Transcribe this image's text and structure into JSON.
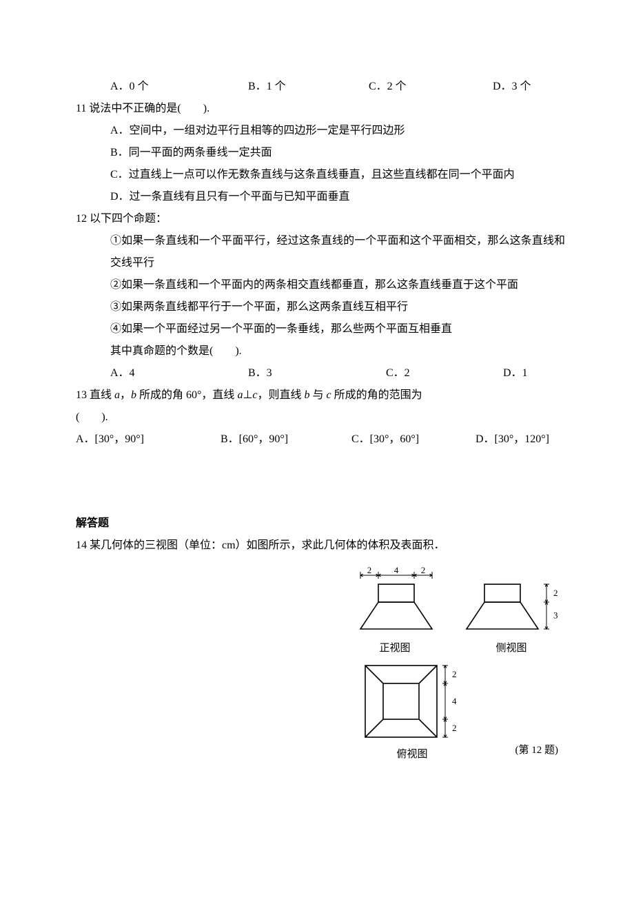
{
  "q10_options": {
    "a": "A．0 个",
    "b": "B．1 个",
    "c": "C．2 个",
    "d": "D．3 个"
  },
  "q11": {
    "stem": "11 说法中不正确的是(　　).",
    "a": "A．空间中，一组对边平行且相等的四边形一定是平行四边形",
    "b": "B．同一平面的两条垂线一定共面",
    "c": "C．过直线上一点可以作无数条直线与这条直线垂直，且这些直线都在同一个平面内",
    "d": "D．过一条直线有且只有一个平面与已知平面垂直"
  },
  "q12": {
    "stem": "12 以下四个命题：",
    "p1": "①如果一条直线和一个平面平行，经过这条直线的一个平面和这个平面相交，那么这条直线和交线平行",
    "p2": "②如果一条直线和一个平面内的两条相交直线都垂直，那么这条直线垂直于这个平面",
    "p3": "③如果两条直线都平行于一个平面，那么这两条直线互相平行",
    "p4": "④如果一个平面经过另一个平面的一条垂线，那么些两个平面互相垂直",
    "tail": "其中真命题的个数是(　　).",
    "options": {
      "a": "A．4",
      "b": "B．3",
      "c": "C．2",
      "d": "D．1"
    }
  },
  "q13": {
    "stem_pre": "13 直线 ",
    "a": "a",
    "comma1": "，",
    "b": "b",
    "mid1": " 所成的角 60°，直线 ",
    "perp": "⊥",
    "c": "c",
    "comma2": "，则直线 ",
    "mid2": " 与 ",
    "mid3": " 所成的角的范围为",
    "paren": "(　　).",
    "options": {
      "a": "A．[30°，90°]",
      "b": "B．[60°，90°]",
      "c": "C．[30°，60°]",
      "d": "D．[30°，120°]"
    }
  },
  "section": "解答题",
  "q14": {
    "stem": "14 某几何体的三视图（单位：cm）如图所示，求此几何体的体积及表面积．"
  },
  "figure": {
    "dim_top_left": "2",
    "dim_top_mid": "4",
    "dim_top_right": "2",
    "dim_r1": "2",
    "dim_r2": "3",
    "dim_tv1": "2",
    "dim_tv2": "4",
    "dim_tv3": "2",
    "label_front": "正视图",
    "label_side": "侧视图",
    "label_top": "俯视图",
    "caption": "(第 12 题)",
    "stroke": "#000000",
    "stroke_w": 1.6,
    "fontsize": 13
  }
}
